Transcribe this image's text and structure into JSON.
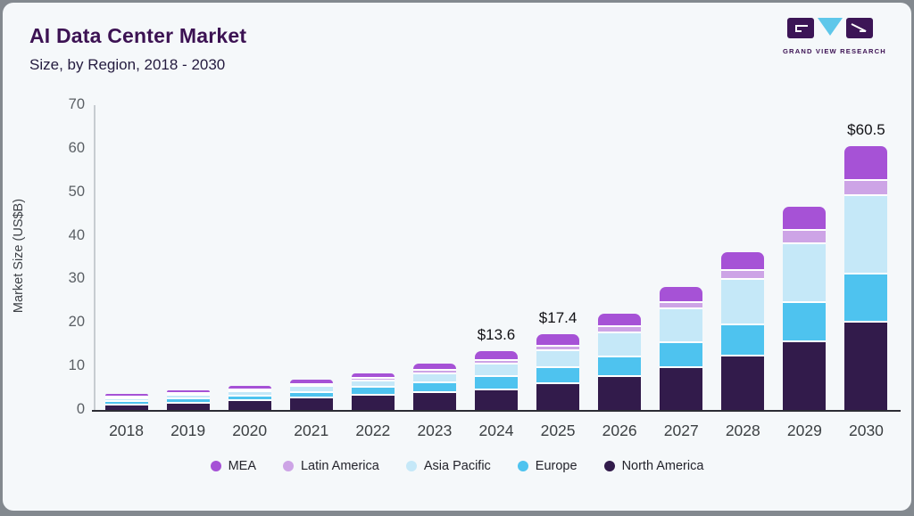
{
  "card": {
    "title": "AI Data Center Market",
    "subtitle": "Size, by Region, 2018 - 2030",
    "logo_text": "GRAND VIEW RESEARCH"
  },
  "colors": {
    "background": "#f5f8fa",
    "title": "#3c1253",
    "logo_dark": "#3c1556",
    "logo_blue": "#5ec7ea",
    "x_axis": "#2c2c34",
    "y_axis": "#c7ccd1"
  },
  "chart_data": {
    "type": "bar",
    "stacked": true,
    "title": "AI Data Center Market",
    "subtitle": "Size, by Region, 2018 - 2030",
    "ylabel": "Market Size (US$B)",
    "xlabel": "",
    "ylim": [
      0,
      70
    ],
    "yticks": [
      0,
      10,
      20,
      30,
      40,
      50,
      60,
      70
    ],
    "grid": false,
    "legend_position": "bottom",
    "categories": [
      "2018",
      "2019",
      "2020",
      "2021",
      "2022",
      "2023",
      "2024",
      "2025",
      "2026",
      "2027",
      "2028",
      "2029",
      "2030"
    ],
    "series": [
      {
        "name": "North America",
        "color": "#321b4b",
        "values": [
          1.5,
          1.9,
          2.4,
          3.0,
          3.6,
          4.2,
          5.0,
          6.3,
          8.0,
          10.0,
          12.7,
          16.0,
          20.4
        ]
      },
      {
        "name": "Europe",
        "color": "#4ec3ef",
        "values": [
          0.75,
          0.9,
          1.1,
          1.4,
          1.9,
          2.4,
          3.0,
          3.8,
          4.4,
          5.7,
          7.1,
          8.9,
          11.2
        ]
      },
      {
        "name": "Asia Pacific",
        "color": "#c5e8f8",
        "values": [
          0.7,
          0.85,
          1.05,
          1.3,
          1.5,
          2.1,
          2.9,
          3.8,
          5.7,
          7.8,
          10.4,
          13.6,
          17.9
        ]
      },
      {
        "name": "Latin America",
        "color": "#cda4e6",
        "values": [
          0.2,
          0.25,
          0.35,
          0.45,
          0.5,
          0.7,
          0.8,
          1.0,
          1.3,
          1.4,
          2.2,
          3.0,
          3.5
        ]
      },
      {
        "name": "MEA",
        "color": "#a652d6",
        "values": [
          0.35,
          0.5,
          0.6,
          0.75,
          1.0,
          1.3,
          1.9,
          2.5,
          2.7,
          3.3,
          3.8,
          5.2,
          7.5
        ]
      }
    ],
    "totals": [
      3.5,
      4.4,
      5.5,
      6.9,
      8.5,
      10.7,
      13.6,
      17.4,
      22.1,
      28.2,
      36.2,
      46.7,
      60.5
    ],
    "legend": [
      "MEA",
      "Latin America",
      "Asia Pacific",
      "Europe",
      "North America"
    ],
    "annotations": [
      {
        "category": "2024",
        "label": "$13.6"
      },
      {
        "category": "2025",
        "label": "$17.4"
      },
      {
        "category": "2030",
        "label": "$60.5"
      }
    ]
  }
}
